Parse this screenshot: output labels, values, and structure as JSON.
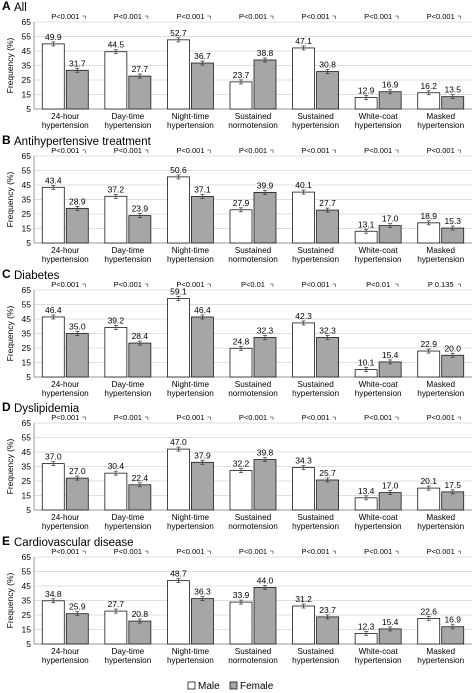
{
  "chart_data": [
    {
      "type": "bar",
      "letter": "A",
      "title": "All",
      "ylabel": "Frequency (%)",
      "ylim": [
        5,
        65
      ],
      "yticks": [
        5,
        15,
        25,
        35,
        45,
        55,
        65
      ],
      "categories": [
        "24-hour\nhypertension",
        "Day-time\nhypertension",
        "Night-time\nhypertension",
        "Sustained\nnormotension",
        "Sustained\nhypertension",
        "White-coat\nhypertension",
        "Masked\nhypertension"
      ],
      "series": [
        {
          "name": "Male",
          "values": [
            49.9,
            44.5,
            52.7,
            23.7,
            47.1,
            12.9,
            16.2
          ]
        },
        {
          "name": "Female",
          "values": [
            31.7,
            27.7,
            36.7,
            38.8,
            30.8,
            16.9,
            13.5
          ]
        }
      ],
      "value_labels": {
        "Male": [
          "49.9",
          "44.5",
          "52.7",
          "23.7",
          "47.1",
          "12.9",
          "16.2"
        ],
        "Female": [
          "31.7",
          "27.7",
          "36.7",
          "38.8",
          "30.8",
          "16.9",
          "13.5"
        ]
      },
      "p_values": [
        "P<0.001",
        "P<0.001",
        "P<0.001",
        "P<0.001",
        "P<0.001",
        "P<0.001",
        "P<0.001"
      ]
    },
    {
      "type": "bar",
      "letter": "B",
      "title": "Antihypertensive treatment",
      "ylabel": "Frequency (%)",
      "ylim": [
        5,
        65
      ],
      "yticks": [
        5,
        15,
        25,
        35,
        45,
        55,
        65
      ],
      "categories": [
        "24-hour\nhypertension",
        "Day-time\nhypertension",
        "Night-time\nhypertension",
        "Sustained\nnormotension",
        "Sustained\nhypertension",
        "White-coat\nhypertension",
        "Masked\nhypertension"
      ],
      "series": [
        {
          "name": "Male",
          "values": [
            43.4,
            37.2,
            50.6,
            27.9,
            40.1,
            13.1,
            18.9
          ]
        },
        {
          "name": "Female",
          "values": [
            28.9,
            23.9,
            37.1,
            39.9,
            27.7,
            17.0,
            15.3
          ]
        }
      ],
      "value_labels": {
        "Male": [
          "43.4",
          "37.2",
          "50.6",
          "27.9",
          "40.1",
          "13.1",
          "18.9"
        ],
        "Female": [
          "28.9",
          "23.9",
          "37.1",
          "39.9",
          "27.7",
          "17.0",
          "15.3"
        ]
      },
      "p_values": [
        "P<0.001",
        "P<0.001",
        "P<0.001",
        "P<0.001",
        "P<0.001",
        "P<0.001",
        "P<0.001"
      ]
    },
    {
      "type": "bar",
      "letter": "C",
      "title": "Diabetes",
      "ylabel": "Frequency (%)",
      "ylim": [
        5,
        65
      ],
      "yticks": [
        5,
        15,
        25,
        35,
        45,
        55,
        65
      ],
      "categories": [
        "24-hour\nhypertension",
        "Day-time\nhypertension",
        "Night-time\nhypertension",
        "Sustained\nnormotension",
        "Sustained\nhypertension",
        "White-coat\nhypertension",
        "Masked\nhypertension"
      ],
      "series": [
        {
          "name": "Male",
          "values": [
            46.4,
            39.2,
            59.1,
            24.8,
            42.3,
            10.1,
            22.9
          ]
        },
        {
          "name": "Female",
          "values": [
            35.0,
            28.4,
            46.4,
            32.3,
            32.3,
            15.4,
            20.0
          ]
        }
      ],
      "value_labels": {
        "Male": [
          "46.4",
          "39.2",
          "59.1",
          "24.8",
          "42.3",
          "10.1",
          "22.9"
        ],
        "Female": [
          "35.0",
          "28.4",
          "46.4",
          "32.3",
          "32.3",
          "15.4",
          "20.0"
        ]
      },
      "p_values": [
        "P<0.001",
        "P<0.001",
        "P<0.001",
        "P<0.01",
        "P<0.001",
        "P<0.01",
        "P 0.135"
      ]
    },
    {
      "type": "bar",
      "letter": "D",
      "title": "Dyslipidemia",
      "ylabel": "Frequency (%)",
      "ylim": [
        5,
        65
      ],
      "yticks": [
        5,
        15,
        25,
        35,
        45,
        55,
        65
      ],
      "categories": [
        "24-hour\nhypertension",
        "Day-time\nhypertension",
        "Night-time\nhypertension",
        "Sustained\nnormotension",
        "Sustained\nhypertension",
        "White-coat\nhypertension",
        "Masked\nhypertension"
      ],
      "series": [
        {
          "name": "Male",
          "values": [
            37.0,
            30.4,
            47.0,
            32.2,
            34.3,
            13.4,
            20.1
          ]
        },
        {
          "name": "Female",
          "values": [
            27.0,
            22.4,
            37.9,
            39.8,
            25.7,
            17.0,
            17.5
          ]
        }
      ],
      "value_labels": {
        "Male": [
          "37.0",
          "30.4",
          "47.0",
          "32.2",
          "34.3",
          "13.4",
          "20.1"
        ],
        "Female": [
          "27.0",
          "22.4",
          "37.9",
          "39.8",
          "25.7",
          "17.0",
          "17.5"
        ]
      },
      "p_values": [
        "P<0.001",
        "P<0.001",
        "P<0.001",
        "P<0.001",
        "P<0.001",
        "P<0.001",
        "P<0.001"
      ]
    },
    {
      "type": "bar",
      "letter": "E",
      "title": "Cardiovascular disease",
      "ylabel": "Frequency (%)",
      "ylim": [
        5,
        65
      ],
      "yticks": [
        5,
        15,
        25,
        35,
        45,
        55,
        65
      ],
      "categories": [
        "24-hour\nhypertension",
        "Day-time\nhypertension",
        "Night-time\nhypertension",
        "Sustained\nnormotension",
        "Sustained\nhypertension",
        "White-coat\nhypertension",
        "Masked\nhypertension"
      ],
      "series": [
        {
          "name": "Male",
          "values": [
            34.8,
            27.7,
            48.7,
            33.9,
            31.2,
            12.3,
            22.6
          ]
        },
        {
          "name": "Female",
          "values": [
            25.9,
            20.8,
            36.3,
            44.0,
            23.7,
            15.4,
            16.9
          ]
        }
      ],
      "value_labels": {
        "Male": [
          "34.8",
          "27.7",
          "48.7",
          "33.9",
          "31.2",
          "12.3",
          "22.6"
        ],
        "Female": [
          "25.9",
          "20.8",
          "36.3",
          "44.0",
          "23.7",
          "15.4",
          "16.9"
        ]
      },
      "p_values": [
        "P<0.001",
        "P<0.001",
        "P<0.001",
        "P<0.001",
        "P<0.001",
        "P<0.001",
        "P<0.001"
      ]
    }
  ],
  "legend": {
    "items": [
      {
        "label": "Male",
        "color": "#ffffff"
      },
      {
        "label": "Female",
        "color": "#a6a6a6"
      }
    ]
  },
  "colors": {
    "male_fill": "#ffffff",
    "female_fill": "#a6a6a6",
    "bar_stroke": "#1a1a1a",
    "gridline": "#bfbfbf",
    "text": "#1a1a1a"
  }
}
